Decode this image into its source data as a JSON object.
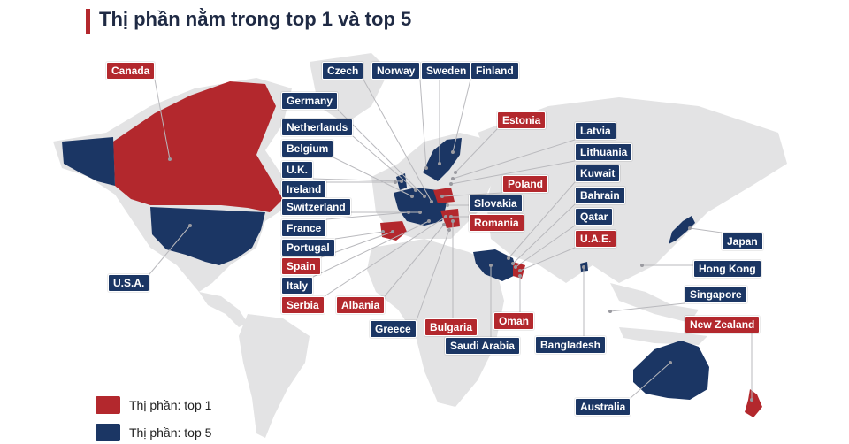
{
  "title": "Thị phần nằm trong top 1 và top 5",
  "colors": {
    "top1": "#b3282d",
    "top5": "#1b3664",
    "land": "#e3e3e4",
    "accent": "#b3282d"
  },
  "legend": [
    {
      "label": "Thị phần: top 1",
      "tier": "top1"
    },
    {
      "label": "Thị phần: top 5",
      "tier": "top5"
    }
  ],
  "countries": [
    {
      "name": "Canada",
      "tier": "top1"
    },
    {
      "name": "Czech",
      "tier": "top5"
    },
    {
      "name": "Norway",
      "tier": "top5"
    },
    {
      "name": "Sweden",
      "tier": "top5"
    },
    {
      "name": "Finland",
      "tier": "top5"
    },
    {
      "name": "Germany",
      "tier": "top5"
    },
    {
      "name": "Netherlands",
      "tier": "top5"
    },
    {
      "name": "Estonia",
      "tier": "top1"
    },
    {
      "name": "Latvia",
      "tier": "top5"
    },
    {
      "name": "Belgium",
      "tier": "top5"
    },
    {
      "name": "Lithuania",
      "tier": "top5"
    },
    {
      "name": "U.K.",
      "tier": "top5"
    },
    {
      "name": "Kuwait",
      "tier": "top5"
    },
    {
      "name": "Poland",
      "tier": "top1"
    },
    {
      "name": "Ireland",
      "tier": "top5"
    },
    {
      "name": "Bahrain",
      "tier": "top5"
    },
    {
      "name": "Slovakia",
      "tier": "top5"
    },
    {
      "name": "Switzerland",
      "tier": "top5"
    },
    {
      "name": "Qatar",
      "tier": "top5"
    },
    {
      "name": "Romania",
      "tier": "top1"
    },
    {
      "name": "France",
      "tier": "top5"
    },
    {
      "name": "U.A.E.",
      "tier": "top1"
    },
    {
      "name": "Japan",
      "tier": "top5"
    },
    {
      "name": "Portugal",
      "tier": "top5"
    },
    {
      "name": "Spain",
      "tier": "top1"
    },
    {
      "name": "Hong Kong",
      "tier": "top5"
    },
    {
      "name": "U.S.A.",
      "tier": "top5"
    },
    {
      "name": "Italy",
      "tier": "top5"
    },
    {
      "name": "Singapore",
      "tier": "top5"
    },
    {
      "name": "Serbia",
      "tier": "top1"
    },
    {
      "name": "Albania",
      "tier": "top1"
    },
    {
      "name": "Oman",
      "tier": "top1"
    },
    {
      "name": "New Zealand",
      "tier": "top1"
    },
    {
      "name": "Greece",
      "tier": "top5"
    },
    {
      "name": "Bulgaria",
      "tier": "top1"
    },
    {
      "name": "Saudi Arabia",
      "tier": "top5"
    },
    {
      "name": "Bangladesh",
      "tier": "top5"
    },
    {
      "name": "Australia",
      "tier": "top5"
    }
  ]
}
